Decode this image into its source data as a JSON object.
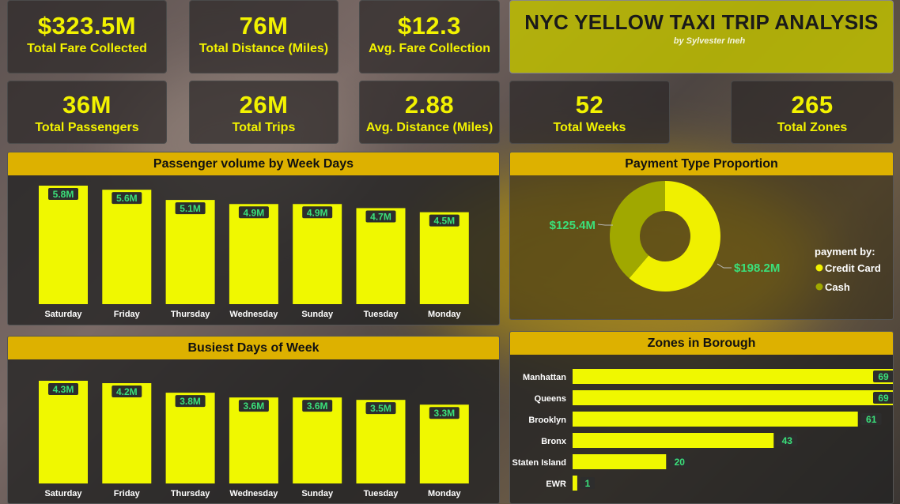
{
  "kpis": [
    {
      "value": "$323.5M",
      "label": "Total Fare Collected"
    },
    {
      "value": "76M",
      "label": "Total Distance (Miles)"
    },
    {
      "value": "$12.3",
      "label": "Avg. Fare Collection"
    },
    {
      "value": "36M",
      "label": "Total Passengers"
    },
    {
      "value": "26M",
      "label": "Total Trips"
    },
    {
      "value": "2.88",
      "label": "Avg. Distance (Miles)"
    },
    {
      "value": "52",
      "label": "Total Weeks"
    },
    {
      "value": "265",
      "label": "Total Zones"
    }
  ],
  "header": {
    "title": "NYC YELLOW TAXI TRIP ANALYSIS",
    "subtitle": "by Sylvester Ineh"
  },
  "colors": {
    "bar": "#f0f800",
    "accent": "#ddb100",
    "label_green": "#3be07a",
    "credit": "#f0f000",
    "cash": "#a0a800"
  },
  "chart_data": [
    {
      "type": "bar",
      "title": "Passenger volume by Week Days",
      "categories": [
        "Saturday",
        "Friday",
        "Thursday",
        "Wednesday",
        "Sunday",
        "Tuesday",
        "Monday"
      ],
      "values": [
        5.8,
        5.6,
        5.1,
        4.9,
        4.9,
        4.7,
        4.5
      ],
      "labels": [
        "5.8M",
        "5.6M",
        "5.1M",
        "4.9M",
        "4.9M",
        "4.7M",
        "4.5M"
      ],
      "ylim": [
        0,
        5.8
      ]
    },
    {
      "type": "bar",
      "title": "Busiest Days of Week",
      "categories": [
        "Saturday",
        "Friday",
        "Thursday",
        "Wednesday",
        "Sunday",
        "Tuesday",
        "Monday"
      ],
      "values": [
        4.3,
        4.2,
        3.8,
        3.6,
        3.6,
        3.5,
        3.3
      ],
      "labels": [
        "4.3M",
        "4.2M",
        "3.8M",
        "3.6M",
        "3.6M",
        "3.5M",
        "3.3M"
      ],
      "ylim": [
        0,
        4.3
      ]
    },
    {
      "type": "pie",
      "title": "Payment Type Proportion",
      "legend_title": "payment by:",
      "legend_placement": "right",
      "slices": [
        {
          "name": "Credit Card",
          "value": 198.2,
          "label": "$198.2M"
        },
        {
          "name": "Cash",
          "value": 125.4,
          "label": "$125.4M"
        }
      ]
    },
    {
      "type": "bar",
      "orientation": "horizontal",
      "title": "Zones in Borough",
      "categories": [
        "Manhattan",
        "Queens",
        "Brooklyn",
        "Bronx",
        "Staten Island",
        "EWR"
      ],
      "values": [
        69,
        69,
        61,
        43,
        20,
        1
      ],
      "xlim": [
        0,
        69
      ]
    }
  ]
}
